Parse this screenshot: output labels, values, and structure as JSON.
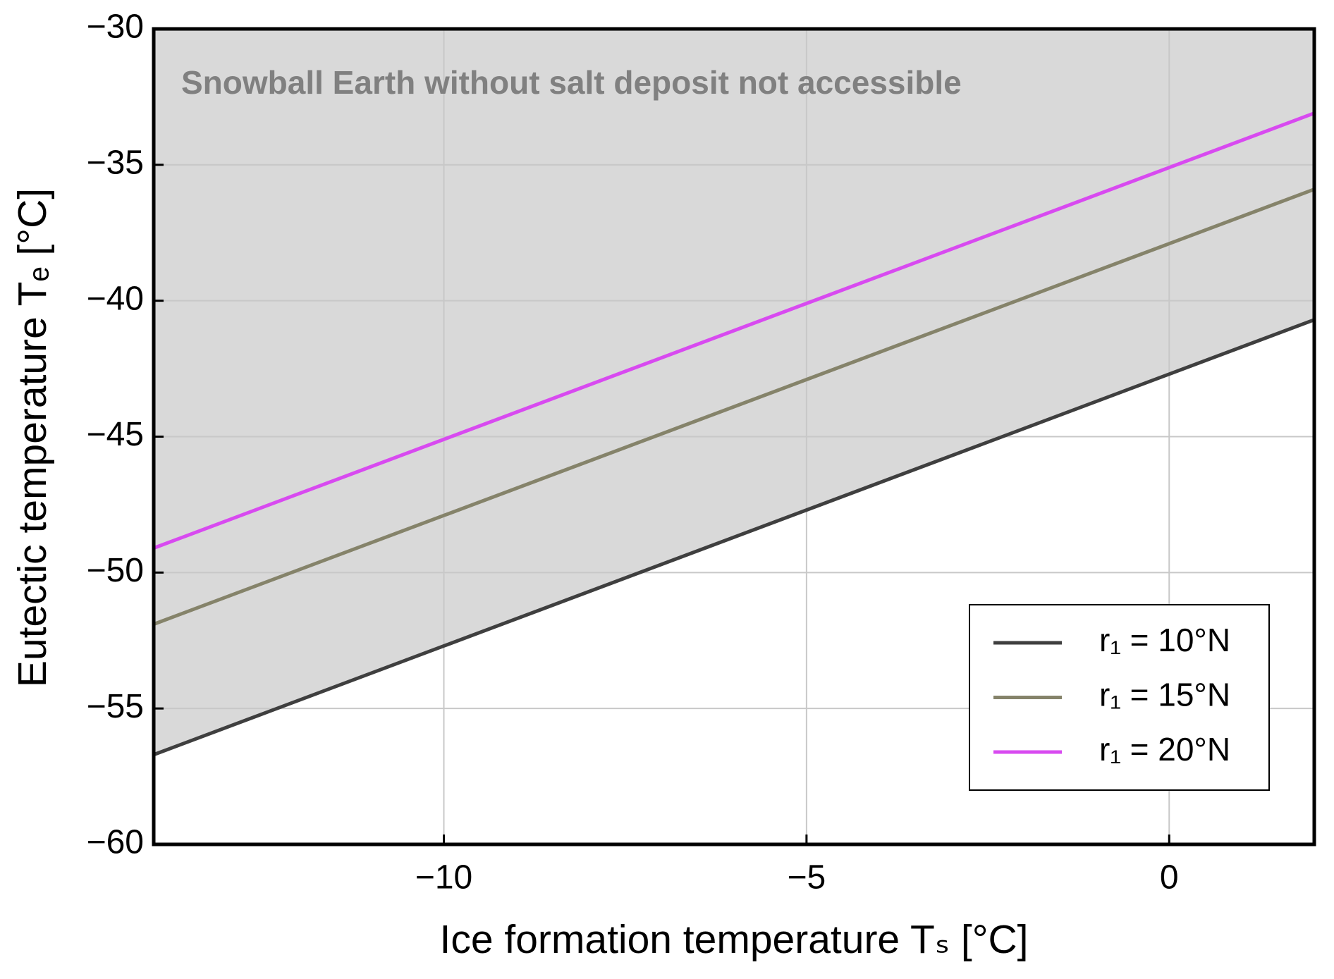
{
  "chart_data": {
    "type": "line",
    "annotation": "Snowball Earth without salt deposit not accessible",
    "xlabel": "Ice formation temperature Tₛ [°C]",
    "ylabel": "Eutectic temperature Tₑ [°C]",
    "x": [
      -14,
      -10,
      -5,
      0,
      2
    ],
    "series": [
      {
        "name": "r₁ = 10°N",
        "color": "#3f3f3f",
        "values": [
          -56.7,
          -52.7,
          -47.7,
          -42.7,
          -40.7
        ]
      },
      {
        "name": "r₁ = 15°N",
        "color": "#85836a",
        "values": [
          -51.9,
          -47.9,
          -42.9,
          -37.9,
          -35.9
        ]
      },
      {
        "name": "r₁ = 20°N",
        "color": "#d84af0",
        "values": [
          -49.1,
          -45.1,
          -40.1,
          -35.1,
          -33.1
        ]
      }
    ],
    "shade_color": "#d9d9d9",
    "xlim": [
      -14,
      2
    ],
    "xticks": [
      {
        "value": -10,
        "label": "−10"
      },
      {
        "value": -5,
        "label": "−5"
      },
      0
    ],
    "ylim": [
      -60,
      -30
    ],
    "yticks": [
      {
        "value": -60,
        "label": "−60"
      },
      {
        "value": -55,
        "label": "−55"
      },
      {
        "value": -50,
        "label": "−50"
      },
      {
        "value": -45,
        "label": "−45"
      },
      {
        "value": -40,
        "label": "−40"
      },
      {
        "value": -35,
        "label": "−35"
      },
      {
        "value": -30,
        "label": "−30"
      }
    ],
    "grid": true,
    "legend": "lower right"
  }
}
